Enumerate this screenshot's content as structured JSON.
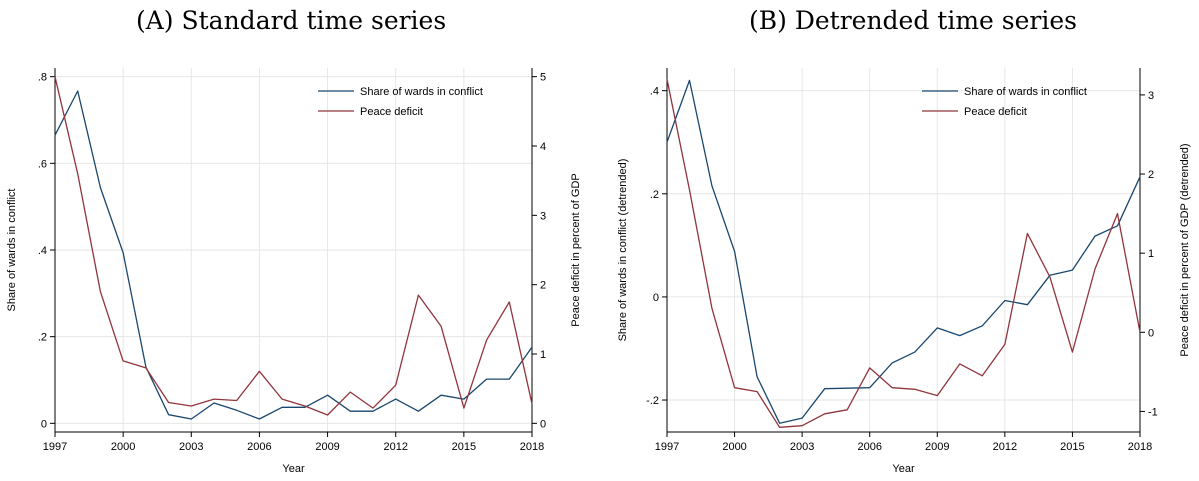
{
  "chart_data": [
    {
      "type": "line",
      "title": "(A) Standard time series",
      "xlabel": "Year",
      "ylabel": "Share of wards in conflict",
      "ylabel_right": "Peace deficit in percent of GDP",
      "x": [
        1997,
        1998,
        1999,
        2000,
        2001,
        2002,
        2003,
        2004,
        2005,
        2006,
        2007,
        2008,
        2009,
        2010,
        2011,
        2012,
        2013,
        2014,
        2015,
        2016,
        2017,
        2018
      ],
      "xticks": [
        "1997",
        "2000",
        "2003",
        "2006",
        "2009",
        "2012",
        "2015",
        "2018"
      ],
      "xlim": [
        1997,
        2018
      ],
      "ylim": [
        -0.02,
        0.82
      ],
      "yticks": [
        0,
        0.2,
        0.4,
        0.6,
        0.8
      ],
      "ytick_labels": [
        "0",
        ".2",
        ".4",
        ".6",
        ".8"
      ],
      "ylim_right": [
        -0.125,
        5.125
      ],
      "yticks_right": [
        0,
        1,
        2,
        3,
        4,
        5
      ],
      "ytick_labels_right": [
        "0",
        "1",
        "2",
        "3",
        "4",
        "5"
      ],
      "grid": true,
      "legend": "top-right",
      "series": [
        {
          "name": "Share of wards in conflict",
          "axis": "left",
          "color": "#1a476f",
          "values": [
            0.665,
            0.767,
            0.544,
            0.394,
            0.13,
            0.02,
            0.01,
            0.047,
            0.03,
            0.01,
            0.037,
            0.037,
            0.065,
            0.028,
            0.028,
            0.056,
            0.028,
            0.065,
            0.056,
            0.102,
            0.102,
            0.176
          ]
        },
        {
          "name": "Peace deficit",
          "axis": "right",
          "color": "#90353b",
          "values": [
            5.0,
            3.6,
            1.9,
            0.9,
            0.8,
            0.3,
            0.25,
            0.35,
            0.33,
            0.75,
            0.35,
            0.25,
            0.12,
            0.45,
            0.22,
            0.55,
            1.85,
            1.4,
            0.22,
            1.2,
            1.75,
            0.28
          ]
        }
      ]
    },
    {
      "type": "line",
      "title": "(B) Detrended time series",
      "xlabel": "Year",
      "ylabel": "Share of wards in conflict (detrended)",
      "ylabel_right": "Peace deficit in percent of GDP (detrended)",
      "x": [
        1997,
        1998,
        1999,
        2000,
        2001,
        2002,
        2003,
        2004,
        2005,
        2006,
        2007,
        2008,
        2009,
        2010,
        2011,
        2012,
        2013,
        2014,
        2015,
        2016,
        2017,
        2018
      ],
      "xticks": [
        "1997",
        "2000",
        "2003",
        "2006",
        "2009",
        "2012",
        "2015",
        "2018"
      ],
      "xlim": [
        1997,
        2018
      ],
      "ylim": [
        -0.262,
        0.444
      ],
      "yticks": [
        -0.2,
        0,
        0.2,
        0.4
      ],
      "ytick_labels": [
        "-.2",
        "0",
        ".2",
        ".4"
      ],
      "ylim_right": [
        -1.26,
        3.34
      ],
      "yticks_right": [
        -1,
        0,
        1,
        2,
        3
      ],
      "ytick_labels_right": [
        "-1",
        "0",
        "1",
        "2",
        "3"
      ],
      "grid": true,
      "legend": "top-right",
      "series": [
        {
          "name": "Share of wards in conflict",
          "axis": "left",
          "color": "#1a476f",
          "values": [
            0.3,
            0.42,
            0.215,
            0.088,
            -0.155,
            -0.245,
            -0.235,
            -0.178,
            -0.177,
            -0.176,
            -0.128,
            -0.107,
            -0.06,
            -0.075,
            -0.056,
            -0.007,
            -0.015,
            0.042,
            0.052,
            0.118,
            0.138,
            0.233
          ]
        },
        {
          "name": "Peace deficit",
          "axis": "right",
          "color": "#90353b",
          "values": [
            3.2,
            1.8,
            0.3,
            -0.7,
            -0.75,
            -1.2,
            -1.18,
            -1.03,
            -0.98,
            -0.45,
            -0.7,
            -0.72,
            -0.8,
            -0.4,
            -0.55,
            -0.15,
            1.25,
            0.7,
            -0.25,
            0.8,
            1.5,
            0.0
          ]
        }
      ]
    }
  ]
}
